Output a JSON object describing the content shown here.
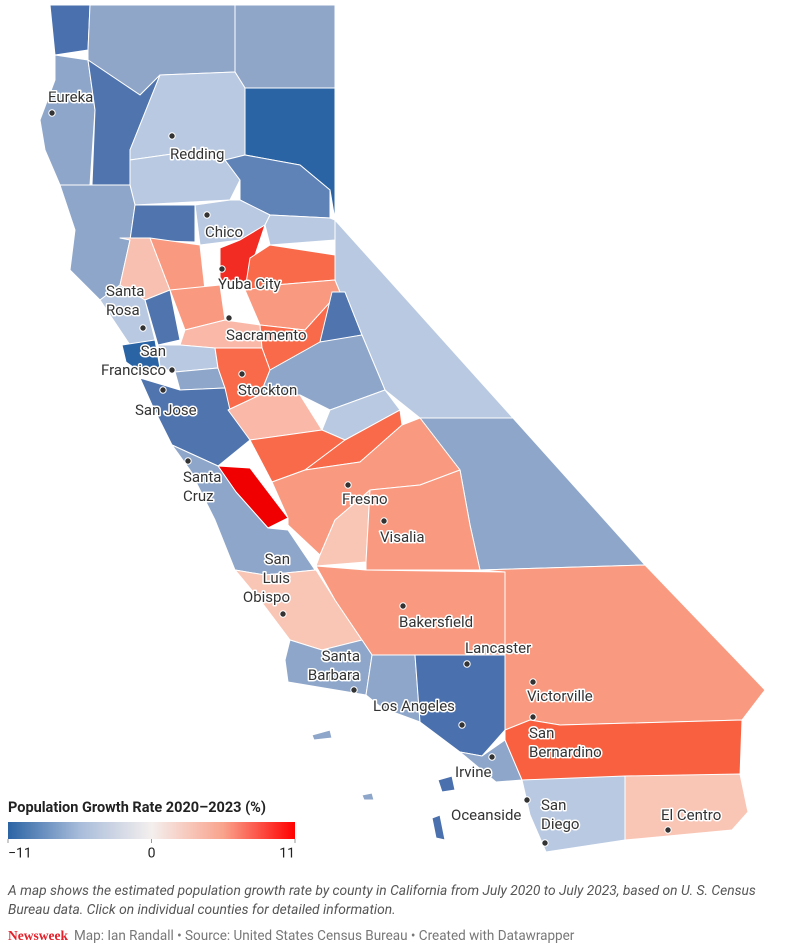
{
  "cities": [
    {
      "lines": [
        "Eureka"
      ]
    },
    {
      "lines": [
        "Redding"
      ]
    },
    {
      "lines": [
        "Chico"
      ]
    },
    {
      "lines": [
        "Yuba City"
      ]
    },
    {
      "lines": [
        "Santa",
        "Rosa"
      ]
    },
    {
      "lines": [
        "Sacramento"
      ]
    },
    {
      "lines": [
        "San",
        "Francisco"
      ]
    },
    {
      "lines": [
        "Stockton"
      ]
    },
    {
      "lines": [
        "San Jose"
      ]
    },
    {
      "lines": [
        "Santa",
        "Cruz"
      ]
    },
    {
      "lines": [
        "Fresno"
      ]
    },
    {
      "lines": [
        "Visalia"
      ]
    },
    {
      "lines": [
        "San",
        "Luis",
        "Obispo"
      ]
    },
    {
      "lines": [
        "Bakersfield"
      ]
    },
    {
      "lines": [
        "Lancaster"
      ]
    },
    {
      "lines": [
        "Santa",
        "Barbara"
      ]
    },
    {
      "lines": [
        "Los Angeles"
      ]
    },
    {
      "lines": [
        "Victorville"
      ]
    },
    {
      "lines": [
        "San",
        "Bernardino"
      ]
    },
    {
      "lines": [
        "Irvine"
      ]
    },
    {
      "lines": [
        "Oceanside"
      ]
    },
    {
      "lines": [
        "San",
        "Diego"
      ]
    },
    {
      "lines": [
        "El Centro"
      ]
    }
  ],
  "legend": {
    "title": "Population Growth Rate 2020–2023 (%)",
    "range": [
      -11,
      11
    ],
    "colors": [
      "#2b64a4",
      "#a8bcda",
      "#f4efee",
      "#f9a38c",
      "#ff0000"
    ],
    "ticks": [
      {
        "value": -11,
        "label": "−11"
      },
      0,
      11
    ]
  },
  "caption": "A map shows the estimated population growth rate by county in California from July 2020 to July 2023, based on U. S. Census Bureau data. Click on individual counties for detailed information.",
  "footer": {
    "brand": "Newsweek",
    "credits": "Map: Ian Randall • Source: United States Census Bureau • Created with Datawrapper"
  }
}
